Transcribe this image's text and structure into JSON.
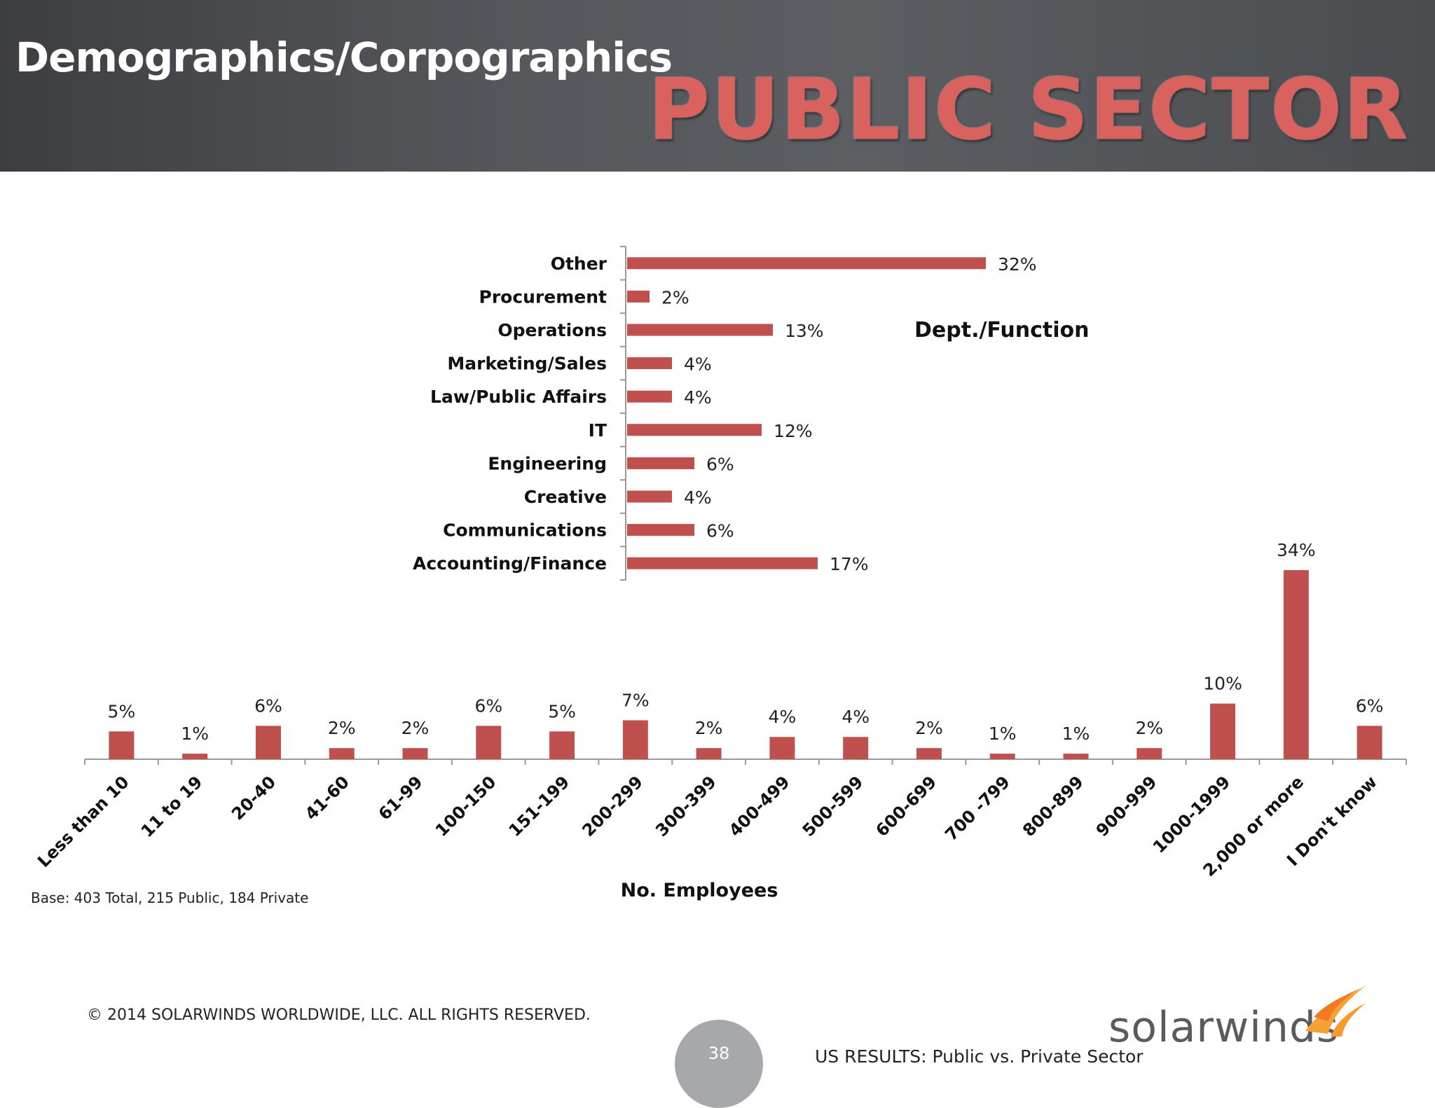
{
  "header": {
    "title": "Demographics/Corpographics",
    "banner": "PUBLIC SECTOR"
  },
  "colors": {
    "bar": "#c0504d",
    "header_bg": "#55575c",
    "banner": "#d9625f"
  },
  "chart_data": [
    {
      "type": "bar",
      "orientation": "horizontal",
      "title": "Dept./Function",
      "categories": [
        "Other",
        "Procurement",
        "Operations",
        "Marketing/Sales",
        "Law/Public Affairs",
        "IT",
        "Engineering",
        "Creative",
        "Communications",
        "Accounting/Finance"
      ],
      "values": [
        32,
        2,
        13,
        4,
        4,
        12,
        6,
        4,
        6,
        17
      ],
      "value_labels": [
        "32%",
        "2%",
        "13%",
        "4%",
        "4%",
        "12%",
        "6%",
        "4%",
        "6%",
        "17%"
      ],
      "unit": "%",
      "xlim": [
        0,
        36
      ],
      "grid": false,
      "legend": "none"
    },
    {
      "type": "bar",
      "orientation": "vertical",
      "xlabel": "No. Employees",
      "categories": [
        "Less than 10",
        "11 to 19",
        "20-40",
        "41-60",
        "61-99",
        "100-150",
        "151-199",
        "200-299",
        "300-399",
        "400-499",
        "500-599",
        "600-699",
        "700 -799",
        "800-899",
        "900-999",
        "1000-1999",
        "2,000 or more",
        "I Don't know"
      ],
      "values": [
        5,
        1,
        6,
        2,
        2,
        6,
        5,
        7,
        2,
        4,
        4,
        2,
        1,
        1,
        2,
        10,
        34,
        6
      ],
      "value_labels": [
        "5%",
        "1%",
        "6%",
        "2%",
        "2%",
        "6%",
        "5%",
        "7%",
        "2%",
        "4%",
        "4%",
        "2%",
        "1%",
        "1%",
        "2%",
        "10%",
        "34%",
        "6%"
      ],
      "unit": "%",
      "ylim": [
        0,
        34
      ],
      "grid": false,
      "legend": "none"
    }
  ],
  "base_note": "Base:  403  Total, 215 Public, 184 Private",
  "copyright": "© 2014 SOLARWINDS WORLDWIDE, LLC.  ALL RIGHTS RESERVED.",
  "page_number": "38",
  "footer_note": "US RESULTS:  Public vs. Private Sector",
  "logo": {
    "text": "solarwinds",
    "icon": "solarwinds-flame-icon"
  }
}
